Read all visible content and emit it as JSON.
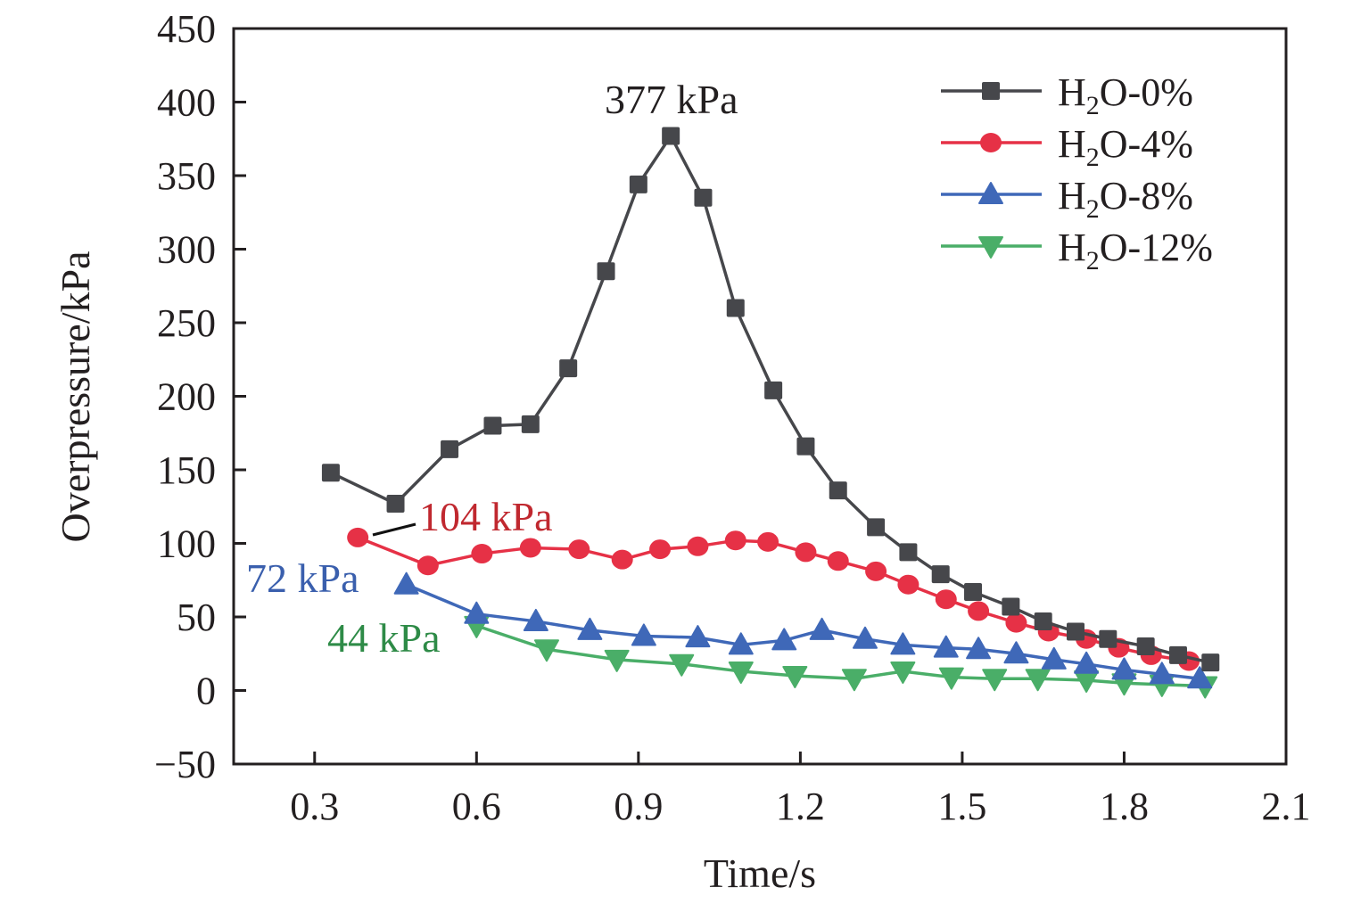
{
  "chart_data": {
    "type": "line",
    "title": "",
    "xlabel": "Time/s",
    "ylabel": "Overpressure/kPa",
    "xlim": [
      0.15,
      2.1
    ],
    "ylim": [
      -50,
      450
    ],
    "xticks": [
      "0.3",
      "0.6",
      "0.9",
      "1.2",
      "1.5",
      "1.8",
      "2.1"
    ],
    "xtick_values": [
      0.3,
      0.6,
      0.9,
      1.2,
      1.5,
      1.8,
      2.1
    ],
    "yticks": [
      "450",
      "400",
      "350",
      "300",
      "250",
      "200",
      "150",
      "100",
      "50",
      "0",
      "−50"
    ],
    "ytick_values": [
      450,
      400,
      350,
      300,
      250,
      200,
      150,
      100,
      50,
      0,
      -50
    ],
    "grid": false,
    "legend_position": "top-right",
    "series": [
      {
        "name": "H2O-0%",
        "label_main": "H",
        "label_sub": "2",
        "label_rest": "O-0%",
        "color": "#46474b",
        "marker": "square",
        "x": [
          0.33,
          0.45,
          0.55,
          0.63,
          0.7,
          0.77,
          0.84,
          0.9,
          0.96,
          1.02,
          1.08,
          1.15,
          1.21,
          1.27,
          1.34,
          1.4,
          1.46,
          1.52,
          1.59,
          1.65,
          1.71,
          1.77,
          1.84,
          1.9,
          1.96
        ],
        "y": [
          148,
          127,
          164,
          180,
          181,
          219,
          285,
          344,
          377,
          335,
          260,
          204,
          166,
          136,
          111,
          94,
          79,
          67,
          57,
          47,
          40,
          35,
          30,
          24,
          19
        ]
      },
      {
        "name": "H2O-4%",
        "label_main": "H",
        "label_sub": "2",
        "label_rest": "O-4%",
        "color": "#e63146",
        "marker": "circle",
        "x": [
          0.38,
          0.51,
          0.61,
          0.7,
          0.79,
          0.87,
          0.94,
          1.01,
          1.08,
          1.14,
          1.21,
          1.27,
          1.34,
          1.4,
          1.47,
          1.53,
          1.6,
          1.66,
          1.73,
          1.79,
          1.85,
          1.92
        ],
        "y": [
          104,
          85,
          93,
          97,
          96,
          89,
          96,
          98,
          102,
          101,
          94,
          88,
          81,
          72,
          62,
          54,
          46,
          40,
          35,
          29,
          24,
          20
        ]
      },
      {
        "name": "H2O-8%",
        "label_main": "H",
        "label_sub": "2",
        "label_rest": "O-8%",
        "color": "#3f68b8",
        "marker": "triangle-up",
        "x": [
          0.47,
          0.6,
          0.71,
          0.81,
          0.91,
          1.01,
          1.09,
          1.17,
          1.24,
          1.32,
          1.39,
          1.47,
          1.53,
          1.6,
          1.67,
          1.73,
          1.8,
          1.87,
          1.94
        ],
        "y": [
          72,
          52,
          47,
          41,
          37,
          36,
          31,
          34,
          41,
          35,
          31,
          29,
          28,
          25,
          21,
          18,
          14,
          11,
          8
        ]
      },
      {
        "name": "H2O-12%",
        "label_main": "H",
        "label_sub": "2",
        "label_rest": "O-12%",
        "color": "#4aae68",
        "marker": "triangle-down",
        "x": [
          0.6,
          0.73,
          0.86,
          0.98,
          1.09,
          1.19,
          1.3,
          1.39,
          1.48,
          1.56,
          1.64,
          1.73,
          1.8,
          1.87,
          1.95
        ],
        "y": [
          44,
          28,
          21,
          18,
          13,
          10,
          8,
          13,
          9,
          8,
          8,
          7,
          5,
          4,
          3
        ]
      }
    ],
    "annotations": [
      {
        "text": "377 kPa",
        "series": "H2O-0%",
        "x": 0.96,
        "y": 377,
        "color": "#231f20"
      },
      {
        "text": "104 kPa",
        "series": "H2O-4%",
        "x": 0.38,
        "y": 104,
        "color": "#c0282f",
        "leader": true
      },
      {
        "text": "72 kPa",
        "series": "H2O-8%",
        "x": 0.47,
        "y": 72,
        "color": "#3a5fad"
      },
      {
        "text": "44 kPa",
        "series": "H2O-12%",
        "x": 0.6,
        "y": 44,
        "color": "#2e8b47"
      }
    ]
  }
}
